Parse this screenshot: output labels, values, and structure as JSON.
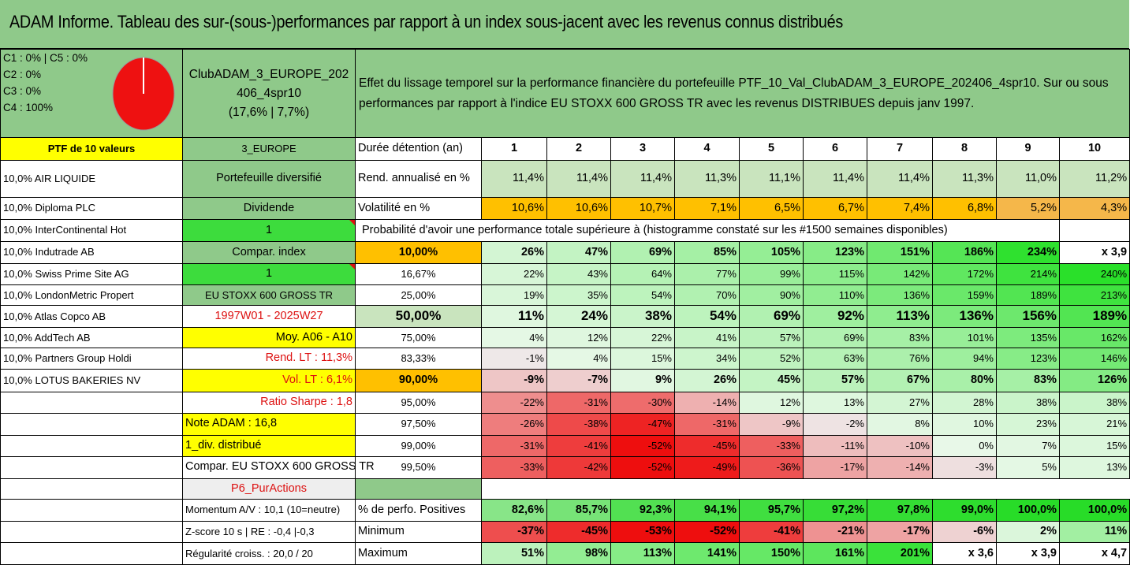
{
  "title": "ADAM Informe. Tableau des sur-(sous-)performances par rapport à un index sous-jacent avec les revenus connus distribués",
  "classes": [
    "C1 : 0% | C5 : 0%",
    "C2 : 0%",
    "C3 : 0%",
    "C4 : 100%"
  ],
  "pie": {
    "color": "#ee1111",
    "edge": "#ffffff"
  },
  "club": {
    "name_line1": "ClubADAM_3_EUROPE_202",
    "name_line2": "406_4spr10",
    "perf": "(17,6% | 7,7%)"
  },
  "description": "Effet du lissage temporel sur la performance financière du portefeuille PTF_10_Val_ClubADAM_3_EUROPE_202406_4spr10. Sur ou sous performances par rapport à l'indice EU STOXX 600 GROSS TR avec les revenus DISTRIBUES depuis janv 1997.",
  "ptf_label": "PTF de 10 valeurs",
  "ptf_code": "3_EUROPE",
  "holdings": [
    "10,0% AIR LIQUIDE",
    "10,0% Diploma PLC",
    "10,0% InterContinental Hot",
    "10,0% Indutrade AB",
    "10,0% Swiss Prime Site AG",
    "10,0% LondonMetric Propert",
    "10,0% Atlas Copco AB",
    "10,0% AddTech AB",
    "10,0% Partners Group Holdi",
    "10,0% LOTUS BAKERIES NV"
  ],
  "side": {
    "portfolio_type": "Portefeuille diversifié",
    "dividende": "Dividende",
    "one_a": "1",
    "compar_index": "Compar. index",
    "one_b": "1",
    "index_name": "EU STOXX 600 GROSS TR",
    "period": "1997W01 - 2025W27",
    "moy": "Moy. A06 - A10",
    "rend_lt": "Rend. LT : 11,3%",
    "vol_lt": "Vol. LT : 6,1%",
    "sharpe": "Ratio Sharpe : 1,8",
    "note": "Note ADAM : 16,8",
    "div": "1_div. distribué",
    "compar_full": "Compar. EU STOXX 600 GROSS TR",
    "p6": "P6_PurActions",
    "momentum": "Momentum A/V : 10,1 (10=neutre)",
    "zscore": "Z-score 10 s | RE : -0,4 |-0,3",
    "regularite": "Régularité croiss. : 20,0 / 20"
  },
  "duree_label": "Durée détention (an)",
  "durations": [
    "1",
    "2",
    "3",
    "4",
    "5",
    "6",
    "7",
    "8",
    "9",
    "10"
  ],
  "rend_label": "Rend. annualisé en %",
  "rend": [
    "11,4%",
    "11,4%",
    "11,4%",
    "11,3%",
    "11,1%",
    "11,4%",
    "11,4%",
    "11,3%",
    "11,0%",
    "11,2%"
  ],
  "vol_label": "Volatilité en %",
  "vol": [
    "10,6%",
    "10,6%",
    "10,7%",
    "7,1%",
    "6,5%",
    "6,7%",
    "7,4%",
    "6,8%",
    "5,2%",
    "4,3%"
  ],
  "proba_label": "Probabilité d'avoir une performance totale supérieure à (histogramme constaté sur les #1500 semaines disponibles)",
  "quantiles": [
    {
      "p": "10,00%",
      "v": [
        "26%",
        "47%",
        "69%",
        "85%",
        "105%",
        "123%",
        "151%",
        "186%",
        "234%",
        "x 3,9"
      ]
    },
    {
      "p": "16,67%",
      "v": [
        "22%",
        "43%",
        "64%",
        "77%",
        "99%",
        "115%",
        "142%",
        "172%",
        "214%",
        "240%"
      ]
    },
    {
      "p": "25,00%",
      "v": [
        "19%",
        "35%",
        "54%",
        "70%",
        "90%",
        "110%",
        "136%",
        "159%",
        "189%",
        "213%"
      ]
    },
    {
      "p": "50,00%",
      "v": [
        "11%",
        "24%",
        "38%",
        "54%",
        "69%",
        "92%",
        "113%",
        "136%",
        "156%",
        "189%"
      ]
    },
    {
      "p": "75,00%",
      "v": [
        "4%",
        "12%",
        "22%",
        "41%",
        "57%",
        "69%",
        "83%",
        "101%",
        "135%",
        "162%"
      ]
    },
    {
      "p": "83,33%",
      "v": [
        "-1%",
        "4%",
        "15%",
        "34%",
        "52%",
        "63%",
        "76%",
        "94%",
        "123%",
        "146%"
      ]
    },
    {
      "p": "90,00%",
      "v": [
        "-9%",
        "-7%",
        "9%",
        "26%",
        "45%",
        "57%",
        "67%",
        "80%",
        "83%",
        "126%"
      ]
    },
    {
      "p": "95,00%",
      "v": [
        "-22%",
        "-31%",
        "-30%",
        "-14%",
        "12%",
        "13%",
        "27%",
        "28%",
        "38%",
        "38%"
      ]
    },
    {
      "p": "97,50%",
      "v": [
        "-26%",
        "-38%",
        "-47%",
        "-31%",
        "-9%",
        "-2%",
        "8%",
        "10%",
        "23%",
        "21%"
      ]
    },
    {
      "p": "99,00%",
      "v": [
        "-31%",
        "-41%",
        "-52%",
        "-45%",
        "-33%",
        "-11%",
        "-10%",
        "0%",
        "7%",
        "15%"
      ]
    },
    {
      "p": "99,50%",
      "v": [
        "-33%",
        "-42%",
        "-52%",
        "-49%",
        "-36%",
        "-17%",
        "-14%",
        "-3%",
        "5%",
        "13%"
      ]
    }
  ],
  "pos_label": "% de perfo. Positives",
  "pos": [
    "82,6%",
    "85,7%",
    "92,3%",
    "94,1%",
    "95,7%",
    "97,2%",
    "97,8%",
    "99,0%",
    "100,0%",
    "100,0%"
  ],
  "min_label": "Minimum",
  "min": [
    "-37%",
    "-45%",
    "-53%",
    "-52%",
    "-41%",
    "-21%",
    "-17%",
    "-6%",
    "2%",
    "11%"
  ],
  "max_label": "Maximum",
  "max": [
    "51%",
    "98%",
    "113%",
    "141%",
    "150%",
    "161%",
    "201%",
    "x 3,6",
    "x 3,9",
    "x 4,7"
  ],
  "colors": {
    "green_mid": "#8fc98a",
    "yellow": "#ffff00",
    "orange": "#ffc000",
    "red": "#ee1111"
  }
}
